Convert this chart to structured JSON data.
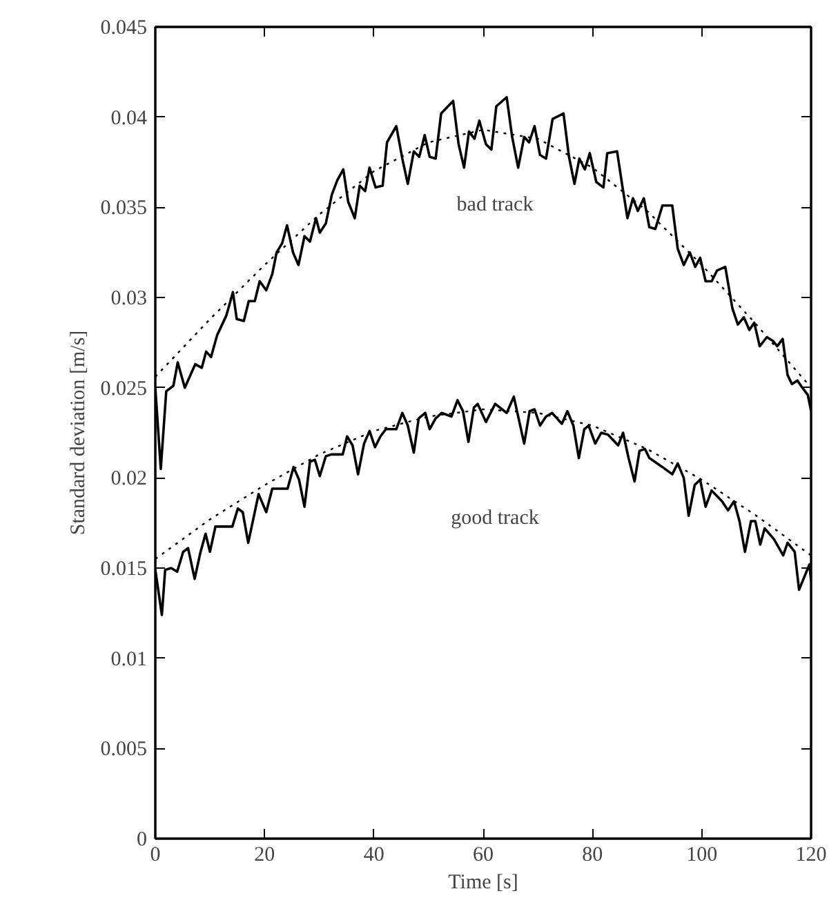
{
  "chart_data": {
    "type": "line",
    "xlabel": "Time [s]",
    "ylabel": "Standard deviation [m/s]",
    "xlim": [
      0,
      120
    ],
    "xticks": [
      0,
      20,
      40,
      60,
      80,
      100,
      120
    ],
    "ylim": [
      0,
      0.045
    ],
    "yticks": [
      0,
      0.005,
      0.01,
      0.015,
      0.02,
      0.025,
      0.03,
      0.035,
      0.04,
      0.045
    ],
    "grid": false,
    "marker": "none",
    "series": [
      {
        "line_style": "solid",
        "color": "#000000",
        "x": [
          0,
          1,
          2,
          3.3,
          4.1,
          5.4,
          7.3,
          8.5,
          9.3,
          10.2,
          11.3,
          13,
          14.2,
          14.9,
          16.2,
          17.1,
          18.2,
          19.1,
          20.3,
          21.4,
          22.2,
          23.2,
          24.1,
          25.2,
          26.2,
          27.3,
          28.3,
          29.4,
          30.1,
          31.2,
          32.3,
          33.3,
          34.4,
          35.3,
          36.5,
          37.4,
          38.4,
          39.2,
          40.3,
          41.6,
          42.4,
          44.1,
          45.2,
          46.2,
          47.3,
          48.3,
          49.3,
          50.2,
          51.3,
          52.3,
          54.5,
          55.5,
          56.5,
          57.4,
          58.4,
          59.3,
          60.5,
          61.5,
          62.4,
          64.3,
          65.3,
          66.4,
          67.5,
          68.4,
          69.4,
          70.4,
          71.5,
          72.7,
          74.7,
          75.7,
          76.7,
          77.6,
          78.6,
          79.5,
          80.7,
          82,
          82.7,
          84.5,
          85.4,
          86.4,
          87.4,
          88.3,
          89.4,
          90.4,
          91.5,
          92.8,
          94.6,
          95.6,
          96.7,
          97.8,
          98.8,
          99.7,
          100.7,
          101.8,
          102.8,
          104.3,
          105.6,
          106.6,
          107.7,
          108.7,
          109.6,
          110.6,
          111.9,
          113,
          113.8,
          114.8,
          115.7,
          116.5,
          117.5,
          118.4,
          119.4,
          120
        ],
        "values": [
          0.025,
          0.0205,
          0.0248,
          0.0251,
          0.0264,
          0.025,
          0.0263,
          0.0261,
          0.027,
          0.0267,
          0.0279,
          0.029,
          0.0303,
          0.0288,
          0.0287,
          0.0298,
          0.0298,
          0.0309,
          0.0304,
          0.0313,
          0.0325,
          0.033,
          0.034,
          0.0325,
          0.0318,
          0.0334,
          0.0331,
          0.0344,
          0.0336,
          0.0341,
          0.0357,
          0.0365,
          0.0371,
          0.0353,
          0.0344,
          0.0362,
          0.0359,
          0.0372,
          0.0361,
          0.0362,
          0.0386,
          0.0395,
          0.0377,
          0.0363,
          0.0381,
          0.0378,
          0.039,
          0.0378,
          0.0377,
          0.0402,
          0.0409,
          0.0385,
          0.0372,
          0.0392,
          0.0388,
          0.0398,
          0.0385,
          0.0382,
          0.0406,
          0.0411,
          0.0389,
          0.0372,
          0.0389,
          0.0386,
          0.0395,
          0.0379,
          0.0377,
          0.0399,
          0.0402,
          0.0378,
          0.0363,
          0.0377,
          0.0371,
          0.038,
          0.0364,
          0.0361,
          0.038,
          0.0381,
          0.0363,
          0.0344,
          0.0355,
          0.0348,
          0.0355,
          0.0339,
          0.0338,
          0.0351,
          0.0351,
          0.0327,
          0.0318,
          0.0325,
          0.0317,
          0.0322,
          0.0309,
          0.0309,
          0.0315,
          0.0317,
          0.0294,
          0.0285,
          0.0289,
          0.0282,
          0.0286,
          0.0273,
          0.0278,
          0.0276,
          0.0273,
          0.0277,
          0.0257,
          0.0252,
          0.0254,
          0.025,
          0.0246,
          0.0237
        ]
      },
      {
        "line_style": "solid",
        "color": "#000000",
        "x": [
          0,
          1.2,
          1.8,
          2.9,
          4,
          5.1,
          6,
          7.2,
          8.2,
          9.2,
          10,
          11,
          12.1,
          14.1,
          15.1,
          16,
          17,
          18.9,
          20.3,
          21.4,
          23.1,
          24.2,
          25.3,
          26.3,
          27.3,
          28.3,
          29.2,
          30.1,
          31.2,
          32.2,
          34.3,
          35.1,
          36.1,
          37.1,
          38.2,
          39.2,
          40.2,
          41.2,
          42.2,
          44.1,
          45.2,
          46.2,
          47.3,
          48.2,
          49.4,
          50.2,
          51.3,
          52.4,
          54.2,
          55.3,
          56.3,
          57.3,
          58.3,
          59,
          60.5,
          62.2,
          64.3,
          65.6,
          67.5,
          68.5,
          69.4,
          70.4,
          71.5,
          72.6,
          74.4,
          75.4,
          76.5,
          77.5,
          78.5,
          79.3,
          80.5,
          81.6,
          82.8,
          84.7,
          85.6,
          86.6,
          87.7,
          88.6,
          89.6,
          90.4,
          92.8,
          94.6,
          95.6,
          96.7,
          97.6,
          98.7,
          99.7,
          100.7,
          101.8,
          103.7,
          104.8,
          105.9,
          106.9,
          107.9,
          109,
          109.8,
          110.7,
          111.5,
          113.2,
          114.9,
          115.7,
          117,
          117.8,
          119.7,
          120
        ],
        "values": [
          0.0149,
          0.0124,
          0.0149,
          0.015,
          0.0148,
          0.0159,
          0.0161,
          0.0144,
          0.0158,
          0.0169,
          0.0159,
          0.0173,
          0.0173,
          0.0173,
          0.0183,
          0.0181,
          0.0164,
          0.0191,
          0.0181,
          0.0194,
          0.0194,
          0.0194,
          0.0206,
          0.0199,
          0.0184,
          0.0209,
          0.021,
          0.0201,
          0.0212,
          0.0213,
          0.0213,
          0.0223,
          0.0218,
          0.0202,
          0.0219,
          0.0226,
          0.0217,
          0.0223,
          0.0227,
          0.0227,
          0.0236,
          0.0229,
          0.0214,
          0.0233,
          0.0236,
          0.0227,
          0.0233,
          0.0236,
          0.0234,
          0.0243,
          0.0237,
          0.022,
          0.0239,
          0.0241,
          0.0231,
          0.0241,
          0.0236,
          0.0245,
          0.0219,
          0.0237,
          0.0238,
          0.0229,
          0.0234,
          0.0236,
          0.023,
          0.0237,
          0.0229,
          0.0211,
          0.0227,
          0.0229,
          0.0219,
          0.0225,
          0.0224,
          0.0218,
          0.0225,
          0.0211,
          0.0198,
          0.0215,
          0.0216,
          0.0211,
          0.0206,
          0.0202,
          0.0208,
          0.02,
          0.0179,
          0.0196,
          0.0199,
          0.0184,
          0.0193,
          0.0187,
          0.0182,
          0.0187,
          0.0176,
          0.0159,
          0.0176,
          0.0176,
          0.0163,
          0.0172,
          0.0166,
          0.0157,
          0.0164,
          0.0159,
          0.0138,
          0.0152,
          0.0143
        ]
      },
      {
        "line_style": "dotted",
        "color": "#000000",
        "x": [
          0,
          10,
          20,
          30,
          40,
          50,
          60,
          70,
          80,
          90,
          100,
          110,
          120
        ],
        "values": [
          0.0256,
          0.0288,
          0.0318,
          0.0346,
          0.037,
          0.0386,
          0.0393,
          0.0388,
          0.0372,
          0.0348,
          0.0318,
          0.0285,
          0.025
        ]
      },
      {
        "line_style": "dotted",
        "color": "#000000",
        "x": [
          0,
          10,
          20,
          30,
          40,
          50,
          60,
          70,
          80,
          90,
          100,
          110,
          120
        ],
        "values": [
          0.0155,
          0.0177,
          0.0196,
          0.0213,
          0.0226,
          0.0234,
          0.0238,
          0.0236,
          0.0229,
          0.0216,
          0.0199,
          0.0179,
          0.0157
        ]
      }
    ],
    "annotations": [
      "bad track",
      "good track"
    ]
  }
}
